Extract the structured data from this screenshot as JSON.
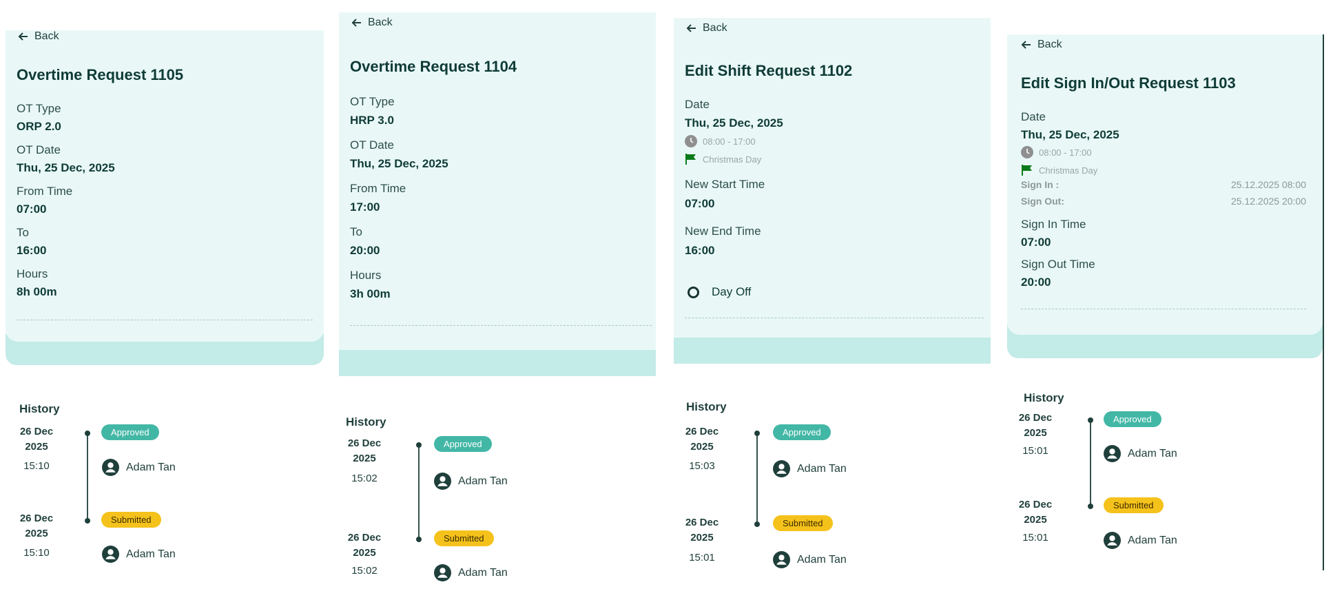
{
  "common": {
    "back_label": "Back",
    "history_title": "History",
    "colors": {
      "card_bg": "#e9f8f7",
      "card_band": "#c3ebe7",
      "approved": "#43b7a6",
      "submitted": "#f5c21b",
      "flag": "#0b7a1a",
      "clock": "#8f8f8f"
    }
  },
  "screens": [
    {
      "title": "Overtime Request 1105",
      "fields": [
        {
          "label": "OT Type",
          "value": "ORP 2.0"
        },
        {
          "label": "OT Date",
          "value": "Thu, 25 Dec, 2025"
        },
        {
          "label": "From Time",
          "value": "07:00"
        },
        {
          "label": "To",
          "value": "16:00"
        },
        {
          "label": "Hours",
          "value": "8h 00m"
        }
      ],
      "history": [
        {
          "date": "26 Dec 2025",
          "date_line1": "26 Dec",
          "date_line2": "2025",
          "time": "15:10",
          "status": "Approved",
          "user": "Adam Tan"
        },
        {
          "date": "26 Dec 2025",
          "date_line1": "26 Dec",
          "date_line2": "2025",
          "time": "15:10",
          "status": "Submitted",
          "user": "Adam Tan"
        }
      ]
    },
    {
      "title": "Overtime Request 1104",
      "fields": [
        {
          "label": "OT Type",
          "value": "HRP 3.0"
        },
        {
          "label": "OT Date",
          "value": "Thu, 25 Dec, 2025"
        },
        {
          "label": "From Time",
          "value": "17:00"
        },
        {
          "label": "To",
          "value": "20:00"
        },
        {
          "label": "Hours",
          "value": "3h 00m"
        }
      ],
      "history": [
        {
          "date_line1": "26 Dec",
          "date_line2": "2025",
          "time": "15:02",
          "status": "Approved",
          "user": "Adam Tan"
        },
        {
          "date_line1": "26 Dec",
          "date_line2": "2025",
          "time": "15:02",
          "status": "Submitted",
          "user": "Adam Tan"
        }
      ]
    },
    {
      "title": "Edit Shift Request 1102",
      "fields": [
        {
          "label": "Date",
          "value": "Thu, 25 Dec, 2025"
        },
        {
          "label": "New Start Time",
          "value": "07:00"
        },
        {
          "label": "New End Time",
          "value": "16:00"
        }
      ],
      "shift_time": "08:00 - 17:00",
      "holiday": "Christmas Day",
      "day_off_label": "Day Off",
      "history": [
        {
          "date_line1": "26 Dec",
          "date_line2": "2025",
          "time": "15:03",
          "status": "Approved",
          "user": "Adam Tan"
        },
        {
          "date_line1": "26 Dec",
          "date_line2": "2025",
          "time": "15:01",
          "status": "Submitted",
          "user": "Adam Tan"
        }
      ]
    },
    {
      "title": "Edit Sign In/Out Request 1103",
      "fields": [
        {
          "label": "Date",
          "value": "Thu, 25 Dec, 2025"
        },
        {
          "label": "Sign In Time",
          "value": "07:00"
        },
        {
          "label": "Sign Out Time",
          "value": "20:00"
        }
      ],
      "shift_time": "08:00 - 17:00",
      "holiday": "Christmas Day",
      "sign_in_label": "Sign In :",
      "sign_in_value": "25.12.2025 08:00",
      "sign_out_label": "Sign Out:",
      "sign_out_value": "25.12.2025 20:00",
      "history": [
        {
          "date_line1": "26 Dec",
          "date_line2": "2025",
          "time": "15:01",
          "status": "Approved",
          "user": "Adam Tan"
        },
        {
          "date_line1": "26 Dec",
          "date_line2": "2025",
          "time": "15:01",
          "status": "Submitted",
          "user": "Adam Tan"
        }
      ]
    }
  ]
}
